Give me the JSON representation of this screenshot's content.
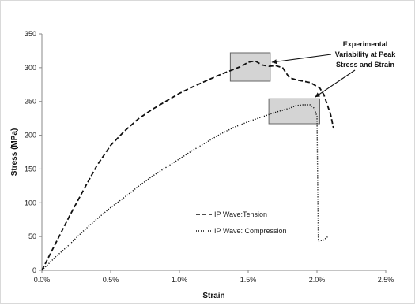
{
  "chart_data": {
    "type": "line",
    "title": "",
    "xlabel": "Strain",
    "ylabel": "Stress (MPa)",
    "xlim": [
      0,
      0.025
    ],
    "ylim": [
      0,
      350
    ],
    "x_ticks": [
      0,
      0.005,
      0.01,
      0.015,
      0.02,
      0.025
    ],
    "x_tick_labels": [
      "0.0%",
      "0.5%",
      "1.0%",
      "1.5%",
      "2.0%",
      "2.5%"
    ],
    "y_ticks": [
      0,
      50,
      100,
      150,
      200,
      250,
      300,
      350
    ],
    "y_tick_labels": [
      "0",
      "50",
      "100",
      "150",
      "200",
      "250",
      "300",
      "350"
    ],
    "grid": false,
    "legend_position": "bottom-center",
    "colors": {
      "line": "#111111",
      "box_fill": "#d4d4d4",
      "box_stroke": "#666666",
      "axis": "#888888"
    },
    "series": [
      {
        "name": "IP Wave:Tension",
        "style": "dashed",
        "x": [
          0,
          0.001,
          0.002,
          0.003,
          0.004,
          0.005,
          0.006,
          0.007,
          0.008,
          0.009,
          0.01,
          0.011,
          0.012,
          0.013,
          0.014,
          0.0145,
          0.015,
          0.0155,
          0.016,
          0.0165,
          0.017,
          0.0175,
          0.018,
          0.0185,
          0.019,
          0.0195,
          0.0202,
          0.0205,
          0.021,
          0.0212
        ],
        "y": [
          0,
          40,
          80,
          118,
          155,
          185,
          206,
          224,
          238,
          250,
          262,
          272,
          281,
          290,
          298,
          302,
          308,
          310,
          304,
          302,
          303,
          300,
          285,
          282,
          280,
          278,
          270,
          260,
          230,
          210
        ]
      },
      {
        "name": "IP Wave: Compression",
        "style": "dotted",
        "x": [
          0,
          0.001,
          0.002,
          0.003,
          0.004,
          0.005,
          0.006,
          0.007,
          0.008,
          0.009,
          0.01,
          0.011,
          0.012,
          0.013,
          0.014,
          0.015,
          0.016,
          0.017,
          0.0175,
          0.018,
          0.0185,
          0.019,
          0.0195,
          0.0198,
          0.02,
          0.0201,
          0.0205,
          0.0208
        ],
        "y": [
          0,
          20,
          38,
          58,
          76,
          93,
          108,
          124,
          139,
          152,
          165,
          178,
          190,
          202,
          212,
          220,
          227,
          234,
          237,
          240,
          244,
          245,
          245,
          240,
          228,
          43,
          45,
          50
        ]
      }
    ],
    "annotation": {
      "lines": [
        "Experimental",
        "Variability at Peak",
        "Stress and Strain"
      ],
      "boxes": [
        {
          "x_range": [
            0.0137,
            0.0166
          ],
          "y_range": [
            280,
            322
          ]
        },
        {
          "x_range": [
            0.0165,
            0.0202
          ],
          "y_range": [
            217,
            254
          ]
        }
      ]
    }
  }
}
